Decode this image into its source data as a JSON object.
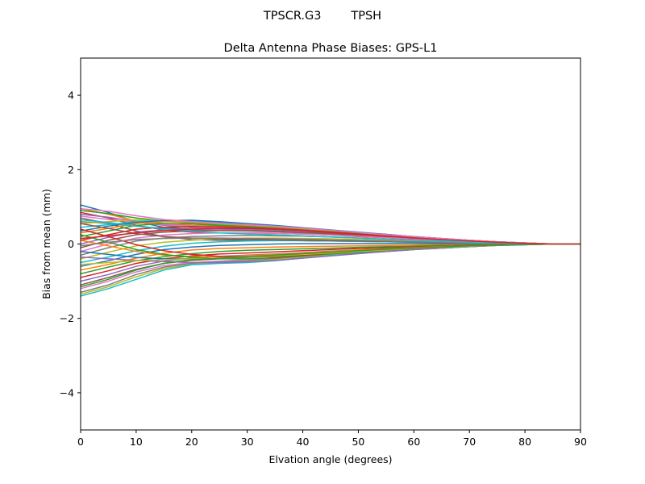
{
  "chart_data": {
    "type": "line",
    "suptitle": "TPSCR.G3        TPSH",
    "title": "Delta Antenna Phase Biases: GPS-L1",
    "xlabel": "Elvation angle (degrees)",
    "ylabel": "Bias from mean (mm)",
    "xlim": [
      0,
      90
    ],
    "ylim": [
      -5,
      5
    ],
    "xticks": [
      0,
      10,
      20,
      30,
      40,
      50,
      60,
      70,
      80,
      90
    ],
    "yticks": [
      -4,
      -2,
      0,
      2,
      4
    ],
    "xtick_labels": [
      "0",
      "10",
      "20",
      "30",
      "40",
      "50",
      "60",
      "70",
      "80",
      "90"
    ],
    "ytick_labels": [
      "−4",
      "−2",
      "0",
      "2",
      "4"
    ],
    "grid": false,
    "legend": "none",
    "x": [
      0,
      5,
      10,
      15,
      20,
      25,
      30,
      35,
      40,
      45,
      50,
      55,
      60,
      65,
      70,
      75,
      80,
      85,
      90
    ],
    "series": [
      {
        "color": "#1f77b4",
        "values": [
          1.05,
          0.85,
          0.6,
          0.45,
          0.4,
          0.42,
          0.44,
          0.42,
          0.38,
          0.33,
          0.28,
          0.23,
          0.18,
          0.13,
          0.09,
          0.05,
          0.02,
          0.0,
          0.0
        ]
      },
      {
        "color": "#ff7f0e",
        "values": [
          0.95,
          0.8,
          0.62,
          0.55,
          0.5,
          0.48,
          0.46,
          0.44,
          0.4,
          0.35,
          0.3,
          0.25,
          0.19,
          0.14,
          0.1,
          0.06,
          0.03,
          0.0,
          0.0
        ]
      },
      {
        "color": "#2ca02c",
        "values": [
          0.9,
          0.82,
          0.7,
          0.62,
          0.56,
          0.52,
          0.5,
          0.47,
          0.42,
          0.37,
          0.31,
          0.26,
          0.2,
          0.15,
          0.1,
          0.06,
          0.03,
          0.0,
          0.0
        ]
      },
      {
        "color": "#d62728",
        "values": [
          0.85,
          0.7,
          0.5,
          0.38,
          0.32,
          0.3,
          0.3,
          0.29,
          0.27,
          0.24,
          0.2,
          0.17,
          0.13,
          0.1,
          0.07,
          0.04,
          0.02,
          0.0,
          0.0
        ]
      },
      {
        "color": "#9467bd",
        "values": [
          0.8,
          0.72,
          0.6,
          0.5,
          0.44,
          0.42,
          0.4,
          0.38,
          0.34,
          0.3,
          0.25,
          0.21,
          0.16,
          0.12,
          0.08,
          0.05,
          0.02,
          0.0,
          0.0
        ]
      },
      {
        "color": "#8c564b",
        "values": [
          0.7,
          0.55,
          0.35,
          0.2,
          0.12,
          0.1,
          0.1,
          0.1,
          0.09,
          0.08,
          0.07,
          0.06,
          0.05,
          0.04,
          0.03,
          0.02,
          0.01,
          0.0,
          0.0
        ]
      },
      {
        "color": "#e377c2",
        "values": [
          0.75,
          0.66,
          0.58,
          0.52,
          0.48,
          0.45,
          0.43,
          0.41,
          0.37,
          0.32,
          0.27,
          0.22,
          0.17,
          0.13,
          0.09,
          0.05,
          0.02,
          0.0,
          0.0
        ]
      },
      {
        "color": "#7f7f7f",
        "values": [
          0.6,
          0.55,
          0.48,
          0.42,
          0.38,
          0.36,
          0.35,
          0.33,
          0.3,
          0.26,
          0.22,
          0.18,
          0.14,
          0.1,
          0.07,
          0.04,
          0.02,
          0.0,
          0.0
        ]
      },
      {
        "color": "#bcbd22",
        "values": [
          0.55,
          0.6,
          0.65,
          0.62,
          0.58,
          0.54,
          0.5,
          0.46,
          0.41,
          0.36,
          0.3,
          0.25,
          0.19,
          0.14,
          0.1,
          0.06,
          0.03,
          0.0,
          0.0
        ]
      },
      {
        "color": "#17becf",
        "values": [
          0.45,
          0.52,
          0.6,
          0.64,
          0.62,
          0.58,
          0.53,
          0.48,
          0.42,
          0.36,
          0.3,
          0.24,
          0.19,
          0.14,
          0.09,
          0.05,
          0.02,
          0.0,
          0.0
        ]
      },
      {
        "color": "#1f77b4",
        "values": [
          0.35,
          0.48,
          0.58,
          0.63,
          0.64,
          0.6,
          0.55,
          0.5,
          0.44,
          0.38,
          0.32,
          0.26,
          0.2,
          0.15,
          0.1,
          0.06,
          0.03,
          0.0,
          0.0
        ]
      },
      {
        "color": "#ff7f0e",
        "values": [
          0.3,
          0.42,
          0.55,
          0.6,
          0.58,
          0.55,
          0.51,
          0.47,
          0.42,
          0.36,
          0.3,
          0.25,
          0.19,
          0.14,
          0.1,
          0.06,
          0.03,
          0.0,
          0.0
        ]
      },
      {
        "color": "#2ca02c",
        "values": [
          0.2,
          0.35,
          0.5,
          0.55,
          0.54,
          0.5,
          0.47,
          0.43,
          0.38,
          0.33,
          0.28,
          0.23,
          0.18,
          0.13,
          0.09,
          0.05,
          0.02,
          0.0,
          0.0
        ]
      },
      {
        "color": "#d62728",
        "values": [
          0.1,
          0.25,
          0.4,
          0.45,
          0.47,
          0.46,
          0.44,
          0.41,
          0.37,
          0.32,
          0.27,
          0.22,
          0.17,
          0.13,
          0.09,
          0.05,
          0.02,
          0.0,
          0.0
        ]
      },
      {
        "color": "#9467bd",
        "values": [
          0.0,
          0.18,
          0.32,
          0.38,
          0.4,
          0.4,
          0.39,
          0.37,
          0.34,
          0.3,
          0.25,
          0.21,
          0.16,
          0.12,
          0.08,
          0.05,
          0.02,
          0.0,
          0.0
        ]
      },
      {
        "color": "#8c564b",
        "values": [
          -0.1,
          0.1,
          0.25,
          0.32,
          0.35,
          0.36,
          0.36,
          0.34,
          0.31,
          0.28,
          0.24,
          0.2,
          0.15,
          0.11,
          0.08,
          0.04,
          0.02,
          0.0,
          0.0
        ]
      },
      {
        "color": "#e377c2",
        "values": [
          -0.2,
          0.0,
          0.16,
          0.24,
          0.28,
          0.3,
          0.3,
          0.29,
          0.27,
          0.24,
          0.21,
          0.17,
          0.14,
          0.1,
          0.07,
          0.04,
          0.02,
          0.0,
          0.0
        ]
      },
      {
        "color": "#7f7f7f",
        "values": [
          -0.3,
          -0.1,
          0.08,
          0.16,
          0.2,
          0.22,
          0.23,
          0.22,
          0.21,
          0.19,
          0.16,
          0.13,
          0.1,
          0.08,
          0.05,
          0.03,
          0.01,
          0.0,
          0.0
        ]
      },
      {
        "color": "#bcbd22",
        "values": [
          -0.4,
          -0.22,
          -0.05,
          0.05,
          0.1,
          0.14,
          0.16,
          0.16,
          0.15,
          0.14,
          0.12,
          0.1,
          0.08,
          0.06,
          0.04,
          0.02,
          0.01,
          0.0,
          0.0
        ]
      },
      {
        "color": "#17becf",
        "values": [
          -0.5,
          -0.35,
          -0.18,
          -0.06,
          0.02,
          0.06,
          0.08,
          0.09,
          0.09,
          0.08,
          0.07,
          0.06,
          0.05,
          0.04,
          0.03,
          0.02,
          0.01,
          0.0,
          0.0
        ]
      },
      {
        "color": "#1f77b4",
        "values": [
          -0.6,
          -0.45,
          -0.28,
          -0.15,
          -0.08,
          -0.04,
          -0.02,
          0.0,
          0.01,
          0.01,
          0.01,
          0.01,
          0.01,
          0.01,
          0.0,
          0.0,
          0.0,
          0.0,
          0.0
        ]
      },
      {
        "color": "#ff7f0e",
        "values": [
          -0.7,
          -0.55,
          -0.38,
          -0.25,
          -0.16,
          -0.12,
          -0.1,
          -0.08,
          -0.07,
          -0.06,
          -0.05,
          -0.04,
          -0.03,
          -0.02,
          -0.02,
          -0.01,
          0.0,
          0.0,
          0.0
        ]
      },
      {
        "color": "#2ca02c",
        "values": [
          -0.8,
          -0.62,
          -0.45,
          -0.34,
          -0.26,
          -0.2,
          -0.17,
          -0.15,
          -0.13,
          -0.11,
          -0.09,
          -0.07,
          -0.06,
          -0.04,
          -0.03,
          -0.02,
          -0.01,
          0.0,
          0.0
        ]
      },
      {
        "color": "#d62728",
        "values": [
          -0.9,
          -0.72,
          -0.52,
          -0.4,
          -0.32,
          -0.27,
          -0.24,
          -0.21,
          -0.18,
          -0.15,
          -0.12,
          -0.1,
          -0.08,
          -0.06,
          -0.04,
          -0.02,
          -0.01,
          0.0,
          0.0
        ]
      },
      {
        "color": "#9467bd",
        "values": [
          -1.0,
          -0.82,
          -0.6,
          -0.46,
          -0.38,
          -0.33,
          -0.3,
          -0.27,
          -0.23,
          -0.19,
          -0.16,
          -0.13,
          -0.1,
          -0.07,
          -0.05,
          -0.03,
          -0.01,
          0.0,
          0.0
        ]
      },
      {
        "color": "#8c564b",
        "values": [
          -1.1,
          -0.9,
          -0.68,
          -0.52,
          -0.44,
          -0.4,
          -0.36,
          -0.32,
          -0.27,
          -0.23,
          -0.19,
          -0.15,
          -0.12,
          -0.09,
          -0.06,
          -0.03,
          -0.01,
          0.0,
          0.0
        ]
      },
      {
        "color": "#e377c2",
        "values": [
          -1.2,
          -1.0,
          -0.75,
          -0.58,
          -0.5,
          -0.46,
          -0.42,
          -0.37,
          -0.32,
          -0.27,
          -0.22,
          -0.18,
          -0.14,
          -0.1,
          -0.07,
          -0.04,
          -0.02,
          0.0,
          0.0
        ]
      },
      {
        "color": "#7f7f7f",
        "values": [
          -1.3,
          -1.1,
          -0.82,
          -0.62,
          -0.52,
          -0.48,
          -0.45,
          -0.4,
          -0.34,
          -0.29,
          -0.24,
          -0.19,
          -0.15,
          -0.11,
          -0.07,
          -0.04,
          -0.02,
          0.0,
          0.0
        ]
      },
      {
        "color": "#bcbd22",
        "values": [
          -1.35,
          -1.15,
          -0.88,
          -0.66,
          -0.55,
          -0.5,
          -0.47,
          -0.42,
          -0.36,
          -0.3,
          -0.25,
          -0.2,
          -0.15,
          -0.11,
          -0.07,
          -0.04,
          -0.02,
          0.0,
          0.0
        ]
      },
      {
        "color": "#17becf",
        "values": [
          -1.4,
          -1.2,
          -0.95,
          -0.7,
          -0.56,
          -0.52,
          -0.5,
          -0.45,
          -0.38,
          -0.31,
          -0.25,
          -0.2,
          -0.15,
          -0.11,
          -0.07,
          -0.04,
          -0.02,
          0.0,
          0.0
        ]
      },
      {
        "color": "#1f77b4",
        "values": [
          -0.2,
          -0.28,
          -0.36,
          -0.4,
          -0.4,
          -0.38,
          -0.34,
          -0.3,
          -0.26,
          -0.22,
          -0.18,
          -0.14,
          -0.11,
          -0.08,
          -0.05,
          -0.03,
          -0.01,
          0.0,
          0.0
        ]
      },
      {
        "color": "#ff7f0e",
        "values": [
          0.1,
          -0.05,
          -0.2,
          -0.3,
          -0.34,
          -0.34,
          -0.31,
          -0.28,
          -0.24,
          -0.2,
          -0.16,
          -0.13,
          -0.1,
          -0.07,
          -0.05,
          -0.03,
          -0.01,
          0.0,
          0.0
        ]
      },
      {
        "color": "#2ca02c",
        "values": [
          0.25,
          0.05,
          -0.15,
          -0.28,
          -0.36,
          -0.4,
          -0.4,
          -0.37,
          -0.32,
          -0.27,
          -0.22,
          -0.17,
          -0.13,
          -0.09,
          -0.06,
          -0.03,
          -0.01,
          0.0,
          0.0
        ]
      },
      {
        "color": "#d62728",
        "values": [
          0.4,
          0.2,
          -0.02,
          -0.18,
          -0.28,
          -0.33,
          -0.35,
          -0.34,
          -0.3,
          -0.25,
          -0.2,
          -0.16,
          -0.12,
          -0.08,
          -0.05,
          -0.03,
          -0.01,
          0.0,
          0.0
        ]
      },
      {
        "color": "#9467bd",
        "values": [
          -0.35,
          -0.4,
          -0.44,
          -0.47,
          -0.5,
          -0.5,
          -0.48,
          -0.44,
          -0.38,
          -0.32,
          -0.26,
          -0.2,
          -0.15,
          -0.11,
          -0.07,
          -0.04,
          -0.02,
          0.0,
          0.0
        ]
      },
      {
        "color": "#8c564b",
        "values": [
          0.55,
          0.42,
          0.28,
          0.2,
          0.16,
          0.14,
          0.12,
          0.11,
          0.1,
          0.09,
          0.08,
          0.07,
          0.05,
          0.04,
          0.03,
          0.02,
          0.01,
          0.0,
          0.0
        ]
      },
      {
        "color": "#e377c2",
        "values": [
          0.95,
          0.88,
          0.76,
          0.66,
          0.6,
          0.56,
          0.52,
          0.48,
          0.43,
          0.37,
          0.31,
          0.25,
          0.2,
          0.15,
          0.1,
          0.06,
          0.03,
          0.0,
          0.0
        ]
      },
      {
        "color": "#7f7f7f",
        "values": [
          -0.05,
          0.05,
          0.12,
          0.15,
          0.16,
          0.16,
          0.15,
          0.14,
          0.13,
          0.11,
          0.1,
          0.08,
          0.06,
          0.05,
          0.03,
          0.02,
          0.01,
          0.0,
          0.0
        ]
      },
      {
        "color": "#bcbd22",
        "values": [
          -0.55,
          -0.5,
          -0.45,
          -0.42,
          -0.4,
          -0.38,
          -0.35,
          -0.32,
          -0.28,
          -0.24,
          -0.2,
          -0.16,
          -0.12,
          -0.09,
          -0.06,
          -0.03,
          -0.01,
          0.0,
          0.0
        ]
      },
      {
        "color": "#17becf",
        "values": [
          0.65,
          0.58,
          0.48,
          0.4,
          0.34,
          0.3,
          0.27,
          0.25,
          0.22,
          0.19,
          0.16,
          0.13,
          0.1,
          0.08,
          0.05,
          0.03,
          0.01,
          0.0,
          0.0
        ]
      },
      {
        "color": "#2ca02c",
        "values": [
          -1.15,
          -0.95,
          -0.7,
          -0.52,
          -0.42,
          -0.38,
          -0.34,
          -0.3,
          -0.26,
          -0.22,
          -0.18,
          -0.14,
          -0.11,
          -0.08,
          -0.05,
          -0.03,
          -0.01,
          0.0,
          0.0
        ]
      },
      {
        "color": "#d62728",
        "values": [
          0.15,
          0.22,
          0.3,
          0.36,
          0.4,
          0.42,
          0.42,
          0.4,
          0.36,
          0.31,
          0.26,
          0.21,
          0.16,
          0.12,
          0.08,
          0.05,
          0.02,
          0.0,
          0.0
        ]
      }
    ]
  }
}
